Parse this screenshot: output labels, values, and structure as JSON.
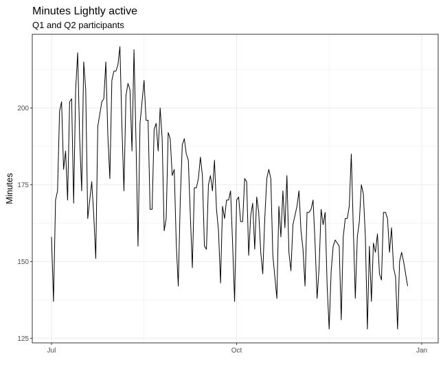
{
  "chart_data": {
    "type": "line",
    "title": "Minutes Lightly active",
    "subtitle": "Q1 and Q2 participants",
    "xlabel": "",
    "ylabel": "Minutes",
    "x_start": "2016-07-01",
    "x_ticks": [
      {
        "label": "Jul",
        "date": "2016-07-01"
      },
      {
        "label": "Oct",
        "date": "2016-10-01"
      },
      {
        "label": "Jan",
        "date": "2017-01-01"
      }
    ],
    "ylim": [
      123.5,
      224
    ],
    "y_ticks": [
      125,
      150,
      175,
      200
    ],
    "grid": true,
    "colors": {
      "line": "#000000",
      "grid": "#ebebeb",
      "panel_border": "#333333",
      "background": "#ffffff"
    },
    "series": [
      {
        "values": [
          158,
          137,
          170,
          173,
          199,
          202,
          180,
          186,
          170,
          202,
          203,
          169,
          206,
          218,
          190,
          173,
          215,
          206,
          164,
          170,
          176,
          165,
          151,
          194,
          198,
          202,
          203,
          215,
          191,
          177,
          209,
          212,
          212,
          214,
          220,
          194,
          173,
          204,
          208,
          206,
          186,
          219,
          189,
          155,
          195,
          202,
          209,
          196,
          196,
          167,
          167,
          193,
          195,
          186,
          200,
          190,
          160,
          164,
          192,
          190,
          178,
          180,
          156,
          142,
          170,
          188,
          190,
          185,
          183,
          165,
          148,
          174,
          174,
          177,
          184,
          178,
          155,
          154,
          175,
          178,
          173,
          183,
          167,
          160,
          143,
          168,
          164,
          170,
          170,
          173,
          156,
          137,
          170,
          171,
          163,
          163,
          177,
          176,
          152,
          165,
          169,
          154,
          171,
          166,
          153,
          146,
          164,
          177,
          180,
          177,
          152,
          145,
          138,
          168,
          158,
          173,
          161,
          178,
          153,
          147,
          162,
          165,
          168,
          173,
          160,
          154,
          142,
          166,
          166,
          167,
          170,
          156,
          138,
          148,
          167,
          162,
          166,
          142,
          128,
          147,
          155,
          157,
          156,
          155,
          131,
          158,
          164,
          164,
          168,
          185,
          161,
          138,
          158,
          163,
          175,
          172,
          158,
          128,
          155,
          137,
          156,
          153,
          159,
          146,
          144,
          166,
          166,
          164,
          153,
          161,
          148,
          145,
          128,
          150,
          153,
          150,
          146,
          142
        ]
      }
    ]
  }
}
